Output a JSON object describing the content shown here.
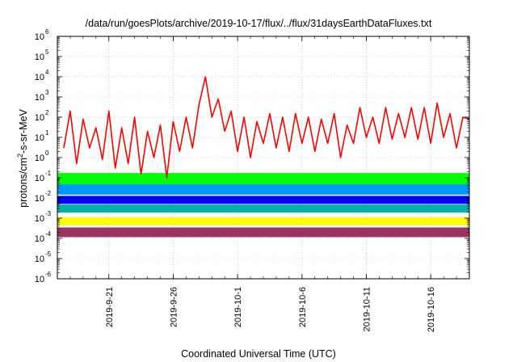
{
  "chart_data": {
    "type": "line",
    "title": "/data/run/goesPlots/archive/2019-10-17/flux/../flux/31daysEarthDataFluxes.txt",
    "xlabel": "Coordinated Universal Time (UTC)",
    "ylabel": {
      "prefix": "protons/cm",
      "sup": "2",
      "suffix": "-s-sr-MeV"
    },
    "yscale": "log",
    "ylim": [
      1e-06,
      1000000.0
    ],
    "xlim": [
      "2019-09-17",
      "2019-10-19"
    ],
    "grid": true,
    "y_ticks": [
      {
        "value": 1e-06,
        "base": "10",
        "exp": "-6"
      },
      {
        "value": 1e-05,
        "base": "10",
        "exp": "-5"
      },
      {
        "value": 0.0001,
        "base": "10",
        "exp": "-4"
      },
      {
        "value": 0.001,
        "base": "10",
        "exp": "-3"
      },
      {
        "value": 0.01,
        "base": "10",
        "exp": "-2"
      },
      {
        "value": 0.1,
        "base": "10",
        "exp": "-1"
      },
      {
        "value": 1,
        "base": "10",
        "exp": "0"
      },
      {
        "value": 10,
        "base": "10",
        "exp": "1"
      },
      {
        "value": 100,
        "base": "10",
        "exp": "2"
      },
      {
        "value": 1000,
        "base": "10",
        "exp": "3"
      },
      {
        "value": 10000,
        "base": "10",
        "exp": "4"
      },
      {
        "value": 100000,
        "base": "10",
        "exp": "5"
      },
      {
        "value": 1000000,
        "base": "10",
        "exp": "6"
      }
    ],
    "x_ticks": [
      {
        "value": "2019-09-21",
        "label": "2019-9-21"
      },
      {
        "value": "2019-09-26",
        "label": "2019-9-26"
      },
      {
        "value": "2019-10-01",
        "label": "2019-10-1"
      },
      {
        "value": "2019-10-06",
        "label": "2019-10-6"
      },
      {
        "value": "2019-10-11",
        "label": "2019-10-11"
      },
      {
        "value": "2019-10-16",
        "label": "2019-10-16"
      }
    ],
    "series": [
      {
        "color": "#ff0000",
        "x": [
          "2019-09-17T12:00",
          "2019-09-18T00:00",
          "2019-09-18T12:00",
          "2019-09-19T00:00",
          "2019-09-19T12:00",
          "2019-09-20T00:00",
          "2019-09-20T12:00",
          "2019-09-21T00:00",
          "2019-09-21T12:00",
          "2019-09-22T00:00",
          "2019-09-22T12:00",
          "2019-09-23T00:00",
          "2019-09-23T12:00",
          "2019-09-24T00:00",
          "2019-09-24T12:00",
          "2019-09-25T00:00",
          "2019-09-25T12:00",
          "2019-09-26T00:00",
          "2019-09-26T12:00",
          "2019-09-27T00:00",
          "2019-09-27T12:00",
          "2019-09-28T00:00",
          "2019-09-28T12:00",
          "2019-09-29T00:00",
          "2019-09-29T12:00",
          "2019-09-30T00:00",
          "2019-09-30T12:00",
          "2019-10-01T00:00",
          "2019-10-01T12:00",
          "2019-10-02T00:00",
          "2019-10-02T12:00",
          "2019-10-03T00:00",
          "2019-10-03T12:00",
          "2019-10-04T00:00",
          "2019-10-04T12:00",
          "2019-10-05T00:00",
          "2019-10-05T12:00",
          "2019-10-06T00:00",
          "2019-10-06T12:00",
          "2019-10-07T00:00",
          "2019-10-07T12:00",
          "2019-10-08T00:00",
          "2019-10-08T12:00",
          "2019-10-09T00:00",
          "2019-10-09T12:00",
          "2019-10-10T00:00",
          "2019-10-10T12:00",
          "2019-10-11T00:00",
          "2019-10-11T12:00",
          "2019-10-12T00:00",
          "2019-10-12T12:00",
          "2019-10-13T00:00",
          "2019-10-13T12:00",
          "2019-10-14T00:00",
          "2019-10-14T12:00",
          "2019-10-15T00:00",
          "2019-10-15T12:00",
          "2019-10-16T00:00",
          "2019-10-16T12:00",
          "2019-10-17T00:00",
          "2019-10-17T12:00",
          "2019-10-18T00:00",
          "2019-10-18T12:00",
          "2019-10-19T00:00"
        ],
        "y": [
          3,
          200,
          0.5,
          80,
          3,
          30,
          0.8,
          200,
          0.3,
          30,
          0.5,
          100,
          0.15,
          20,
          1,
          40,
          0.1,
          60,
          2,
          100,
          3,
          400,
          10000,
          100,
          800,
          20,
          200,
          2,
          100,
          1,
          60,
          5,
          150,
          3,
          100,
          2,
          150,
          5,
          100,
          2,
          80,
          5,
          150,
          1,
          40,
          5,
          300,
          10,
          100,
          5,
          300,
          8,
          150,
          10,
          300,
          8,
          300,
          5,
          500,
          10,
          150,
          3,
          100,
          80
        ]
      },
      {
        "color": "#00ff00",
        "x": [
          "2019-09-17T00:00",
          "2019-10-19T00:00"
        ],
        "y": [
          0.09,
          0.09
        ]
      },
      {
        "color": "#0099ff",
        "x": [
          "2019-09-17T00:00",
          "2019-10-19T00:00"
        ],
        "y": [
          0.04,
          0.04
        ]
      },
      {
        "color": "#0000ff",
        "x": [
          "2019-09-17T00:00",
          "2019-10-19T00:00"
        ],
        "y": [
          0.008,
          0.008
        ]
      },
      {
        "color": "#00b0a0",
        "x": [
          "2019-09-17T00:00",
          "2019-10-19T00:00"
        ],
        "y": [
          0.003,
          0.003
        ]
      },
      {
        "color": "#ffff00",
        "x": [
          "2019-09-17T00:00",
          "2019-10-19T00:00"
        ],
        "y": [
          0.0007,
          0.0007
        ]
      },
      {
        "color": "#993366",
        "x": [
          "2019-09-17T00:00",
          "2019-10-19T00:00"
        ],
        "y": [
          0.0002,
          0.0002
        ]
      }
    ]
  }
}
